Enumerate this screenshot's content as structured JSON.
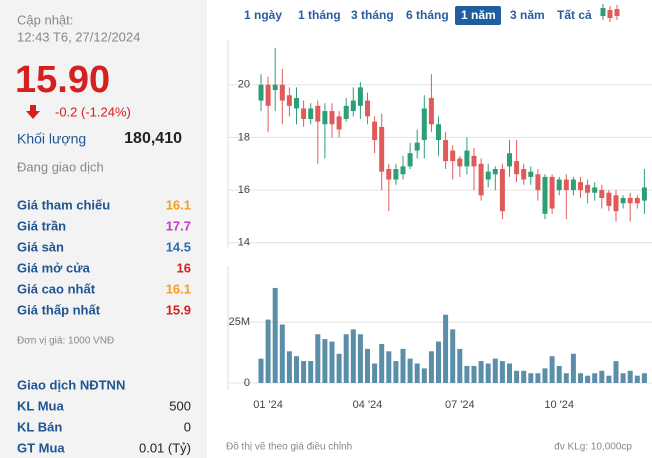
{
  "header": {
    "updated_label": "Cập nhật:",
    "updated_time": "12:43 T6, 27/12/2024"
  },
  "quote": {
    "price": "15.90",
    "change": "-0.2 (-1.24%)",
    "volume_label": "Khối lượng",
    "volume": "180,410",
    "status": "Đang giao dịch"
  },
  "stats": [
    {
      "label": "Giá tham chiếu",
      "value": "16.1",
      "color": "#f0a020"
    },
    {
      "label": "Giá trần",
      "value": "17.7",
      "color": "#c13cc9"
    },
    {
      "label": "Giá sàn",
      "value": "14.5",
      "color": "#2a6fb0"
    },
    {
      "label": "Giá mở cửa",
      "value": "16",
      "color": "#d42020"
    },
    {
      "label": "Giá cao nhất",
      "value": "16.1",
      "color": "#f0a020"
    },
    {
      "label": "Giá thấp nhất",
      "value": "15.9",
      "color": "#d42020"
    }
  ],
  "unit_note": "Đơn vị giá: 1000 VNĐ",
  "foreign": {
    "title": "Giao dịch NĐTNN",
    "rows": [
      {
        "label": "KL Mua",
        "value": "500"
      },
      {
        "label": "KL Bán",
        "value": "0"
      },
      {
        "label": "GT Mua",
        "value": "0.01 (Tỷ)"
      }
    ]
  },
  "tabs": [
    {
      "label": "1 ngày",
      "active": false
    },
    {
      "label": "1 tháng",
      "active": false
    },
    {
      "label": "3 tháng",
      "active": false
    },
    {
      "label": "6 tháng",
      "active": false
    },
    {
      "label": "1 năm",
      "active": true
    },
    {
      "label": "3 năm",
      "active": false
    },
    {
      "label": "Tất cả",
      "active": false
    }
  ],
  "footer": {
    "note": "Đồ thị vẽ theo giá điều chỉnh",
    "unit": "đv KLg: 10,000cp"
  },
  "chart_data": [
    {
      "type": "candlestick",
      "up_color": "#2e9e77",
      "down_color": "#e05a5a",
      "grid": true,
      "ylim": [
        13.8,
        21.7
      ],
      "yticks": [
        14,
        16,
        18,
        20
      ],
      "open": [
        19.4,
        20.0,
        19.8,
        20.0,
        19.6,
        19.1,
        19.1,
        18.7,
        19.2,
        18.5,
        19.0,
        18.8,
        18.7,
        19.0,
        19.2,
        19.4,
        18.6,
        18.4,
        16.8,
        16.4,
        16.6,
        16.9,
        17.5,
        17.9,
        19.5,
        17.9,
        17.9,
        17.5,
        17.2,
        16.9,
        17.3,
        17.0,
        16.4,
        16.6,
        16.8,
        16.9,
        17.1,
        16.8,
        16.5,
        16.6,
        15.1,
        16.5,
        16.0,
        16.4,
        16.0,
        16.3,
        16.2,
        15.9,
        16.0,
        15.9,
        15.8,
        15.5,
        15.7,
        15.7,
        15.6
      ],
      "high": [
        20.4,
        20.3,
        21.4,
        20.6,
        19.9,
        19.9,
        19.4,
        19.3,
        19.4,
        19.3,
        19.3,
        19.0,
        19.5,
        19.9,
        20.1,
        19.7,
        18.8,
        18.9,
        17.0,
        17.0,
        17.3,
        17.8,
        18.3,
        19.6,
        20.4,
        18.8,
        18.2,
        17.7,
        17.3,
        18.0,
        17.6,
        17.2,
        17.0,
        16.9,
        17.0,
        17.9,
        17.9,
        17.0,
        16.9,
        16.8,
        16.6,
        16.6,
        16.5,
        16.6,
        16.5,
        16.5,
        16.4,
        16.3,
        16.2,
        16.0,
        16.0,
        15.8,
        15.9,
        15.8,
        16.8
      ],
      "low": [
        19.0,
        18.2,
        19.0,
        18.5,
        18.8,
        18.5,
        18.4,
        18.5,
        17.0,
        17.2,
        18.0,
        18.0,
        18.6,
        18.8,
        18.7,
        18.5,
        17.4,
        16.0,
        15.2,
        16.2,
        16.4,
        16.8,
        17.2,
        17.2,
        18.2,
        17.3,
        16.8,
        16.4,
        16.5,
        16.6,
        16.0,
        15.6,
        16.1,
        16.0,
        14.9,
        16.5,
        16.3,
        16.2,
        16.2,
        15.6,
        14.9,
        15.1,
        15.8,
        14.9,
        15.8,
        15.7,
        15.5,
        15.6,
        15.3,
        15.2,
        14.8,
        15.3,
        14.8,
        15.3,
        15.1
      ],
      "close": [
        20.0,
        19.2,
        20.0,
        19.4,
        19.2,
        19.5,
        18.7,
        19.1,
        18.6,
        19.0,
        18.5,
        18.3,
        19.2,
        19.4,
        19.9,
        18.8,
        17.9,
        16.7,
        16.4,
        16.8,
        16.9,
        17.4,
        17.8,
        19.1,
        18.5,
        18.5,
        17.1,
        17.1,
        16.9,
        17.5,
        16.9,
        15.8,
        16.7,
        16.8,
        15.2,
        17.4,
        16.6,
        16.4,
        16.7,
        16.0,
        16.5,
        15.3,
        16.4,
        16.0,
        16.4,
        16.0,
        15.9,
        16.1,
        15.7,
        15.4,
        15.2,
        15.7,
        15.5,
        15.5,
        16.1
      ]
    },
    {
      "type": "bar",
      "color": "#5b8ea8",
      "grid": true,
      "ylim": [
        0,
        48000000
      ],
      "yticks": [
        0,
        {
          "value": 25000000,
          "label": "25M"
        }
      ],
      "categories": [
        null,
        "01 '24",
        null,
        null,
        null,
        null,
        null,
        null,
        null,
        null,
        null,
        null,
        null,
        null,
        null,
        "04 '24",
        null,
        null,
        null,
        null,
        null,
        null,
        null,
        null,
        null,
        null,
        null,
        null,
        "07 '24",
        null,
        null,
        null,
        null,
        null,
        null,
        null,
        null,
        null,
        null,
        null,
        null,
        null,
        "10 '24",
        null,
        null,
        null,
        null,
        null,
        null,
        null,
        null,
        null,
        null,
        null,
        null
      ],
      "values": [
        10000000,
        26000000,
        39000000,
        24000000,
        13000000,
        11000000,
        9000000,
        9000000,
        20000000,
        18000000,
        17000000,
        12000000,
        20000000,
        22000000,
        20000000,
        14000000,
        8000000,
        16000000,
        13000000,
        9000000,
        14000000,
        10000000,
        8000000,
        6000000,
        13000000,
        17000000,
        28000000,
        22000000,
        14000000,
        7000000,
        7000000,
        9000000,
        8000000,
        10000000,
        9000000,
        8000000,
        5000000,
        5000000,
        4000000,
        4000000,
        6000000,
        11000000,
        7000000,
        4000000,
        12000000,
        4000000,
        3000000,
        4000000,
        5000000,
        3000000,
        9000000,
        4000000,
        5000000,
        3000000,
        4000000
      ]
    }
  ]
}
